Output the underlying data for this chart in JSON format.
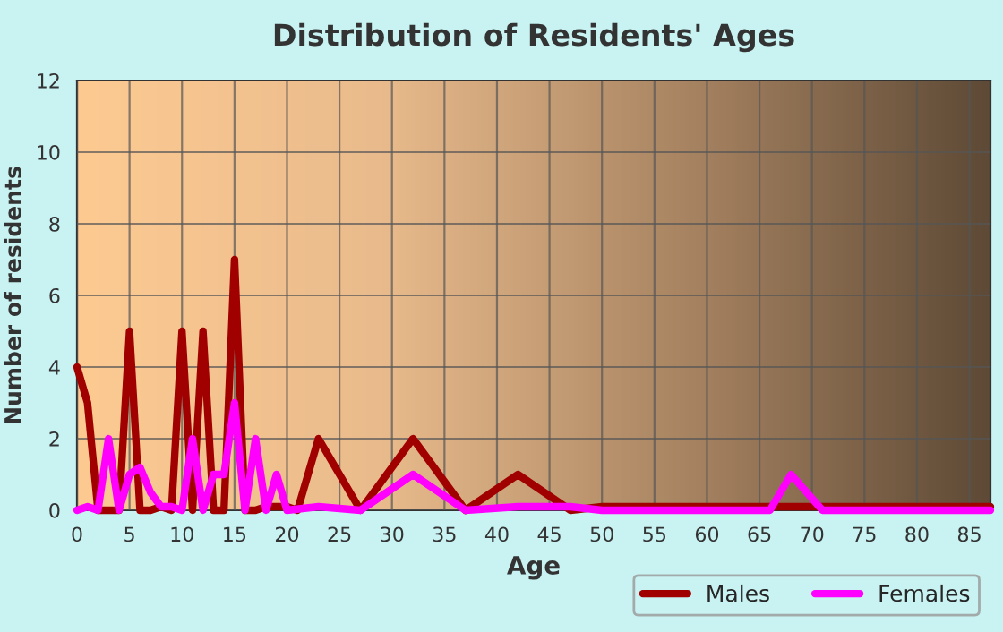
{
  "chart_data": {
    "type": "line",
    "title": "Distribution of Residents' Ages",
    "xlabel": "Age",
    "ylabel": "Number of residents",
    "xlim": [
      0,
      87
    ],
    "xticks": [
      0,
      5,
      10,
      15,
      20,
      25,
      30,
      35,
      40,
      45,
      50,
      55,
      60,
      65,
      70,
      75,
      80,
      85
    ],
    "ylim": [
      0,
      12
    ],
    "yticks": [
      0,
      2,
      4,
      6,
      8,
      10,
      12
    ],
    "grid": true,
    "legend": "bottom right",
    "marker": "none",
    "line_style": "solid",
    "series": [
      {
        "name": "Males",
        "color": "#a00000",
        "x": [
          0,
          1,
          2,
          3,
          4,
          5,
          6,
          7,
          8,
          9,
          10,
          11,
          12,
          13,
          14,
          15,
          16,
          17,
          18,
          19,
          20,
          21,
          23,
          27,
          32,
          37,
          42,
          47,
          50,
          60,
          70,
          80,
          87
        ],
        "values": [
          4,
          3,
          0,
          0,
          0,
          5,
          0,
          0,
          0.1,
          0,
          5,
          0,
          5,
          0,
          0,
          7,
          0,
          0,
          0.1,
          0.1,
          0.1,
          0,
          2,
          0,
          2,
          0,
          1,
          0,
          0.1,
          0.1,
          0.1,
          0.1,
          0.1
        ]
      },
      {
        "name": "Females",
        "color": "#ff00ff",
        "x": [
          0,
          1,
          2,
          3,
          4,
          5,
          6,
          7,
          8,
          9,
          10,
          11,
          12,
          13,
          14,
          15,
          16,
          17,
          18,
          19,
          20,
          23,
          27,
          32,
          37,
          42,
          47,
          50,
          66,
          68,
          71,
          87
        ],
        "values": [
          0,
          0.1,
          0,
          2,
          0,
          1,
          1.2,
          0.5,
          0.1,
          0.1,
          0,
          2,
          0,
          1,
          1,
          3,
          0,
          2,
          0,
          1,
          0,
          0.1,
          0,
          1,
          0,
          0.1,
          0.1,
          0,
          0,
          1,
          0,
          0
        ]
      }
    ]
  }
}
